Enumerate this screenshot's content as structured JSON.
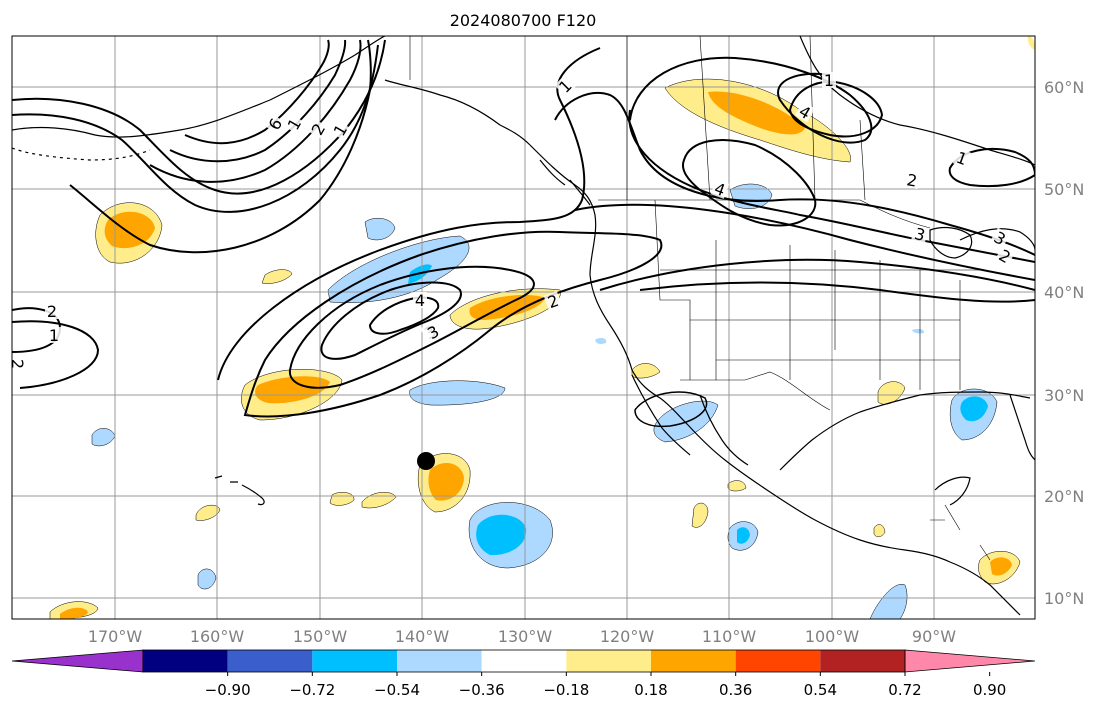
{
  "title": "2024080700 F120",
  "lon_labels": [
    "170°W",
    "160°W",
    "150°W",
    "140°W",
    "130°W",
    "120°W",
    "110°W",
    "100°W",
    "90°W"
  ],
  "lat_labels": [
    "60°N",
    "50°N",
    "40°N",
    "30°N",
    "20°N",
    "10°N"
  ],
  "colorbar": {
    "ticks": [
      "−0.90",
      "−0.72",
      "−0.54",
      "−0.36",
      "−0.18",
      "0.18",
      "0.36",
      "0.54",
      "0.72",
      "0.90"
    ],
    "colors": [
      "#9932cc",
      "#000080",
      "#3a5fcd",
      "#00bfff",
      "#add8ff",
      "#ffffff",
      "#ffec8b",
      "#ffa500",
      "#ff4500",
      "#b22222",
      "#ff88aa"
    ]
  },
  "contour_labels": [
    "1",
    "2",
    "3",
    "4",
    "2",
    "3",
    "4",
    "1",
    "2",
    "3",
    "1",
    "2",
    "3",
    "4",
    "1",
    "2",
    "1",
    "2",
    "6",
    "1"
  ],
  "colors": {
    "pos_light": "#ffec8b",
    "pos_mid": "#ffa500",
    "neg_light": "#add8ff",
    "neg_mid": "#00bfff",
    "grid": "#999999",
    "axis_label": "#808080"
  }
}
